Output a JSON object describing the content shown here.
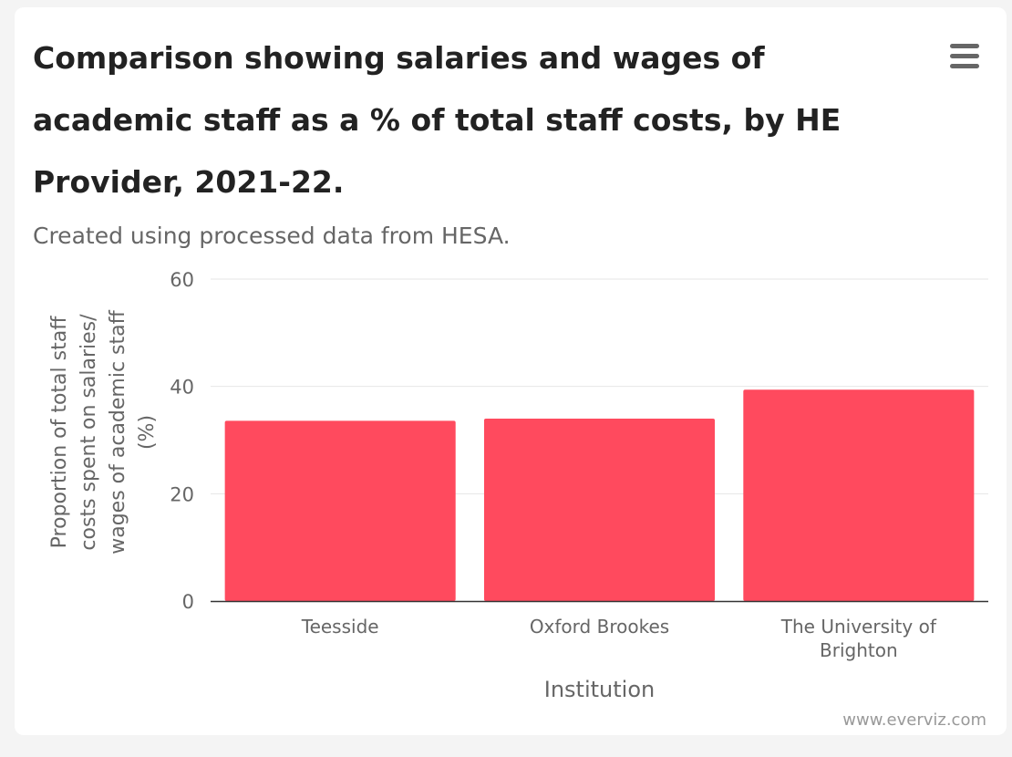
{
  "menu": {
    "icon": "hamburger-menu-icon"
  },
  "credit": "www.everviz.com",
  "chart_data": {
    "type": "bar",
    "title": "Comparison showing salaries and wages of academic staff as a % of total staff costs, by HE Provider, 2021-22.",
    "subtitle": "Created using processed data from HESA.",
    "xlabel": "Institution",
    "ylabel_lines": [
      "Proportion of total staff",
      "costs spent on salaries/",
      "wages of academic staff",
      "(%)"
    ],
    "categories": [
      [
        "Teesside"
      ],
      [
        "Oxford Brookes"
      ],
      [
        "The University of",
        "Brighton"
      ]
    ],
    "values": [
      33.6,
      34.0,
      39.4
    ],
    "ylim": [
      0,
      60
    ],
    "yticks": [
      0,
      20,
      40,
      60
    ],
    "grid": true,
    "legend": "none",
    "bar_color": "#ff4a5e"
  }
}
